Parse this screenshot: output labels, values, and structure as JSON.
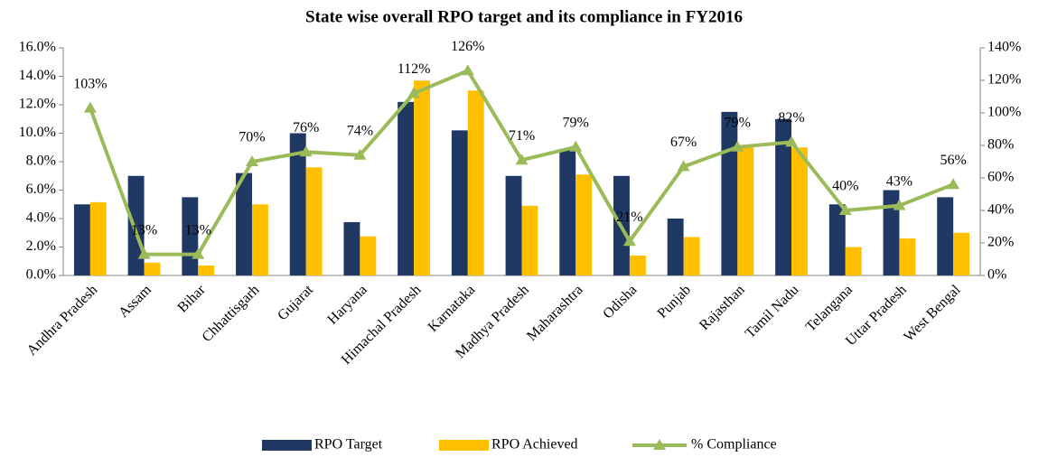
{
  "chart_data": {
    "type": "bar-line",
    "title": "State wise overall RPO target and its compliance in FY2016",
    "categories": [
      "Andhra Pradesh",
      "Assam",
      "Bihar",
      "Chhattisgarh",
      "Gujarat",
      "Haryana",
      "Himachal Pradesh",
      "Karnataka",
      "Madhya Pradesh",
      "Maharashtra",
      "Odisha",
      "Punjab",
      "Rajasthan",
      "Tamil Nadu",
      "Telangana",
      "Uttar Pradesh",
      "West Bengal"
    ],
    "series": [
      {
        "name": "RPO Target",
        "type": "bar",
        "color": "#1f3864",
        "values": [
          5.0,
          7.0,
          5.5,
          7.2,
          10.0,
          3.75,
          12.2,
          10.2,
          7.0,
          8.9,
          7.0,
          4.0,
          11.5,
          11.0,
          5.0,
          6.0,
          5.5
        ]
      },
      {
        "name": "RPO Achieved",
        "type": "bar",
        "color": "#ffc000",
        "values": [
          5.15,
          0.9,
          0.7,
          5.0,
          7.6,
          2.75,
          13.7,
          13.0,
          4.9,
          7.1,
          1.4,
          2.7,
          9.0,
          9.0,
          2.0,
          2.6,
          3.0
        ]
      },
      {
        "name": "% Compliance",
        "type": "line",
        "axis": "y2",
        "color": "#9bbb59",
        "values": [
          103,
          13,
          13,
          70,
          76,
          74,
          112,
          126,
          71,
          79,
          21,
          67,
          79,
          82,
          40,
          43,
          56
        ],
        "value_labels": [
          "103%",
          "13%",
          "13%",
          "70%",
          "76%",
          "74%",
          "112%",
          "126%",
          "71%",
          "79%",
          "21%",
          "67%",
          "79%",
          "82%",
          "40%",
          "43%",
          "56%"
        ]
      }
    ],
    "ylim": [
      0,
      16
    ],
    "yticks": [
      {
        "value": 0,
        "label": "0.0%"
      },
      {
        "value": 2,
        "label": "2.0%"
      },
      {
        "value": 4,
        "label": "4.0%"
      },
      {
        "value": 6,
        "label": "6.0%"
      },
      {
        "value": 8,
        "label": "8.0%"
      },
      {
        "value": 10,
        "label": "10.0%"
      },
      {
        "value": 12,
        "label": "12.0%"
      },
      {
        "value": 14,
        "label": "14.0%"
      },
      {
        "value": 16,
        "label": "16.0%"
      }
    ],
    "y2lim": [
      0,
      140
    ],
    "y2ticks": [
      {
        "value": 0,
        "label": "0%"
      },
      {
        "value": 20,
        "label": "20%"
      },
      {
        "value": 40,
        "label": "40%"
      },
      {
        "value": 60,
        "label": "60%"
      },
      {
        "value": 80,
        "label": "80%"
      },
      {
        "value": 100,
        "label": "100%"
      },
      {
        "value": 120,
        "label": "120%"
      },
      {
        "value": 140,
        "label": "140%"
      }
    ],
    "legend": "bottom"
  }
}
